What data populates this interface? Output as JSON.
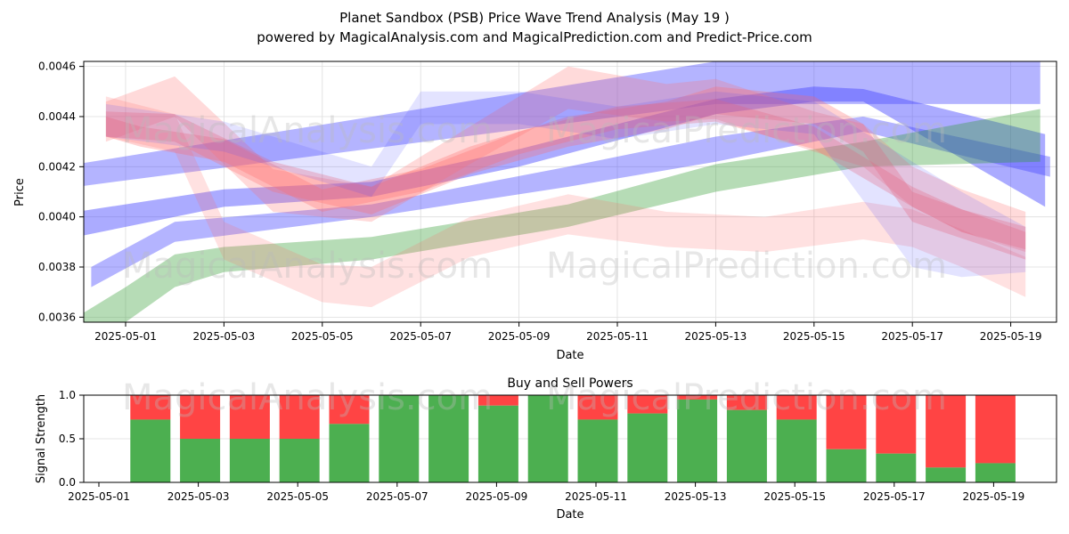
{
  "title_line1": "Planet Sandbox (PSB) Price Wave Trend Analysis (May 19 )",
  "title_line2": "powered by MagicalAnalysis.com and MagicalPrediction.com and Predict-Price.com",
  "watermarks": [
    "MagicalAnalysis.com",
    "MagicalPrediction.com"
  ],
  "chart_data": [
    {
      "type": "area",
      "name": "price-wave-chart",
      "xlabel": "Date",
      "ylabel": "Price",
      "x_ticks": [
        "2025-05-01",
        "2025-05-03",
        "2025-05-05",
        "2025-05-07",
        "2025-05-09",
        "2025-05-11",
        "2025-05-13",
        "2025-05-15",
        "2025-05-17",
        "2025-05-19"
      ],
      "y_ticks": [
        "0.0036",
        "0.0038",
        "0.0040",
        "0.0042",
        "0.0044",
        "0.0046"
      ],
      "ylim": [
        0.00358,
        0.00462
      ],
      "grid": true,
      "colors": {
        "red": "#ff6b6b",
        "blue": "#4444ff",
        "green": "#2e9a2e"
      },
      "bands": [
        {
          "color": "blue",
          "opacity": 0.4,
          "x": [
            "2025-04-30",
            "2025-05-13",
            "2025-05-19.6"
          ],
          "y_upper": [
            0.00421,
            0.00462,
            0.00462
          ],
          "y_lower": [
            0.00412,
            0.00445,
            0.00445
          ]
        },
        {
          "color": "blue",
          "opacity": 0.45,
          "x": [
            "2025-04-30",
            "2025-05-03",
            "2025-05-06",
            "2025-05-09",
            "2025-05-13",
            "2025-05-15",
            "2025-05-16",
            "2025-05-19.7"
          ],
          "y_upper": [
            0.00402,
            0.00411,
            0.00414,
            0.00427,
            0.00447,
            0.00452,
            0.00451,
            0.00433
          ],
          "y_lower": [
            0.00392,
            0.00404,
            0.00408,
            0.0042,
            0.00441,
            0.00446,
            0.00446,
            0.00404
          ]
        },
        {
          "color": "blue",
          "opacity": 0.4,
          "x": [
            "2025-04-30.3",
            "2025-05-02",
            "2025-05-06",
            "2025-05-10",
            "2025-05-13",
            "2025-05-16",
            "2025-05-19.8"
          ],
          "y_upper": [
            0.0038,
            0.00398,
            0.00405,
            0.0042,
            0.00432,
            0.0044,
            0.00424
          ],
          "y_lower": [
            0.00372,
            0.0039,
            0.004,
            0.00412,
            0.00422,
            0.00434,
            0.00416
          ]
        },
        {
          "color": "green",
          "opacity": 0.35,
          "x": [
            "2025-04-30",
            "2025-05-01",
            "2025-05-02",
            "2025-05-03",
            "2025-05-06",
            "2025-05-10",
            "2025-05-13",
            "2025-05-16",
            "2025-05-19.6"
          ],
          "y_upper": [
            0.0036,
            0.00372,
            0.00385,
            0.00388,
            0.00392,
            0.00405,
            0.00421,
            0.0043,
            0.00443
          ],
          "y_lower": [
            0.00356,
            0.00358,
            0.00372,
            0.00378,
            0.00383,
            0.00396,
            0.0041,
            0.0042,
            0.00422
          ]
        },
        {
          "color": "red",
          "opacity": 0.25,
          "x": [
            "2025-04-30.6",
            "2025-05-02",
            "2025-05-04",
            "2025-05-06",
            "2025-05-08",
            "2025-05-10",
            "2025-05-12",
            "2025-05-13",
            "2025-05-15",
            "2025-05-16",
            "2025-05-17",
            "2025-05-18",
            "2025-05-19.3"
          ],
          "y_upper": [
            0.00446,
            0.00456,
            0.00419,
            0.00412,
            0.00436,
            0.0046,
            0.00453,
            0.00455,
            0.00442,
            0.00437,
            0.0042,
            0.00411,
            0.00402
          ],
          "y_lower": [
            0.0043,
            0.0044,
            0.00402,
            0.00398,
            0.00421,
            0.00443,
            0.00438,
            0.00439,
            0.00426,
            0.0042,
            0.00404,
            0.00394,
            0.00386
          ]
        },
        {
          "color": "red",
          "opacity": 0.3,
          "x": [
            "2025-04-30.6",
            "2025-05-02",
            "2025-05-04",
            "2025-05-06",
            "2025-05-08",
            "2025-05-10",
            "2025-05-12",
            "2025-05-13",
            "2025-05-15",
            "2025-05-16",
            "2025-05-17",
            "2025-05-19.3"
          ],
          "y_upper": [
            0.00442,
            0.00441,
            0.00422,
            0.00412,
            0.00428,
            0.0044,
            0.00446,
            0.00452,
            0.00448,
            0.00437,
            0.0041,
            0.00394
          ],
          "y_lower": [
            0.00432,
            0.0043,
            0.0041,
            0.00401,
            0.00417,
            0.00428,
            0.00435,
            0.00441,
            0.00437,
            0.00426,
            0.00398,
            0.00383
          ]
        },
        {
          "color": "red",
          "opacity": 0.3,
          "x": [
            "2025-04-30.6",
            "2025-05-01.3",
            "2025-05-03",
            "2025-05-05",
            "2025-05-07",
            "2025-05-09",
            "2025-05-11",
            "2025-05-13",
            "2025-05-15",
            "2025-05-17",
            "2025-05-18",
            "2025-05-19.3"
          ],
          "y_upper": [
            0.0044,
            0.00436,
            0.00431,
            0.00411,
            0.00419,
            0.00434,
            0.00444,
            0.00447,
            0.00436,
            0.00412,
            0.00403,
            0.00396
          ],
          "y_lower": [
            0.00432,
            0.00428,
            0.00422,
            0.00402,
            0.0041,
            0.00425,
            0.00435,
            0.00438,
            0.00427,
            0.00404,
            0.00394,
            0.00387
          ]
        },
        {
          "color": "red",
          "opacity": 0.2,
          "x": [
            "2025-04-30.6",
            "2025-05-02",
            "2025-05-03",
            "2025-05-05",
            "2025-05-06",
            "2025-05-08",
            "2025-05-10",
            "2025-05-12",
            "2025-05-14",
            "2025-05-16",
            "2025-05-17",
            "2025-05-18",
            "2025-05-19.3"
          ],
          "y_upper": [
            0.00448,
            0.00441,
            0.00398,
            0.00381,
            0.0038,
            0.004,
            0.00409,
            0.00402,
            0.004,
            0.00406,
            0.00403,
            0.00395,
            0.00384
          ],
          "y_lower": [
            0.00432,
            0.00426,
            0.00383,
            0.00366,
            0.00364,
            0.00384,
            0.00393,
            0.00388,
            0.00386,
            0.00391,
            0.00388,
            0.0038,
            0.00368
          ]
        },
        {
          "color": "blue",
          "opacity": 0.15,
          "x": [
            "2025-04-30.6",
            "2025-05-03",
            "2025-05-06",
            "2025-05-07",
            "2025-05-09",
            "2025-05-11",
            "2025-05-13",
            "2025-05-15",
            "2025-05-17",
            "2025-05-18",
            "2025-05-19.3"
          ],
          "y_upper": [
            0.00445,
            0.00438,
            0.0042,
            0.0045,
            0.0045,
            0.00444,
            0.0045,
            0.00446,
            0.00422,
            0.0041,
            0.00396
          ],
          "y_lower": [
            0.00432,
            0.00426,
            0.00408,
            0.00437,
            0.00437,
            0.00431,
            0.00437,
            0.00433,
            0.0038,
            0.00376,
            0.00378
          ]
        }
      ]
    },
    {
      "type": "bar",
      "name": "buy-sell-powers-chart",
      "title": "Buy and Sell Powers",
      "xlabel": "Date",
      "ylabel": "Signal Strength",
      "ylim": [
        0,
        1
      ],
      "y_ticks": [
        "0.0",
        "0.5",
        "1.0"
      ],
      "x_ticks": [
        "2025-05-01",
        "2025-05-03",
        "2025-05-05",
        "2025-05-07",
        "2025-05-09",
        "2025-05-11",
        "2025-05-13",
        "2025-05-15",
        "2025-05-17",
        "2025-05-19"
      ],
      "colors": {
        "buy": "#4caf50",
        "sell": "#ff4444"
      },
      "categories": [
        "2025-05-02",
        "2025-05-03",
        "2025-05-04",
        "2025-05-05",
        "2025-05-06",
        "2025-05-07",
        "2025-05-08",
        "2025-05-09",
        "2025-05-10",
        "2025-05-11",
        "2025-05-12",
        "2025-05-13",
        "2025-05-14",
        "2025-05-15",
        "2025-05-16",
        "2025-05-17",
        "2025-05-18",
        "2025-05-19"
      ],
      "buy_values": [
        0.72,
        0.5,
        0.5,
        0.5,
        0.67,
        1.0,
        1.0,
        0.88,
        1.0,
        0.72,
        0.79,
        0.95,
        0.83,
        0.72,
        0.38,
        0.33,
        0.17,
        0.22
      ]
    }
  ]
}
